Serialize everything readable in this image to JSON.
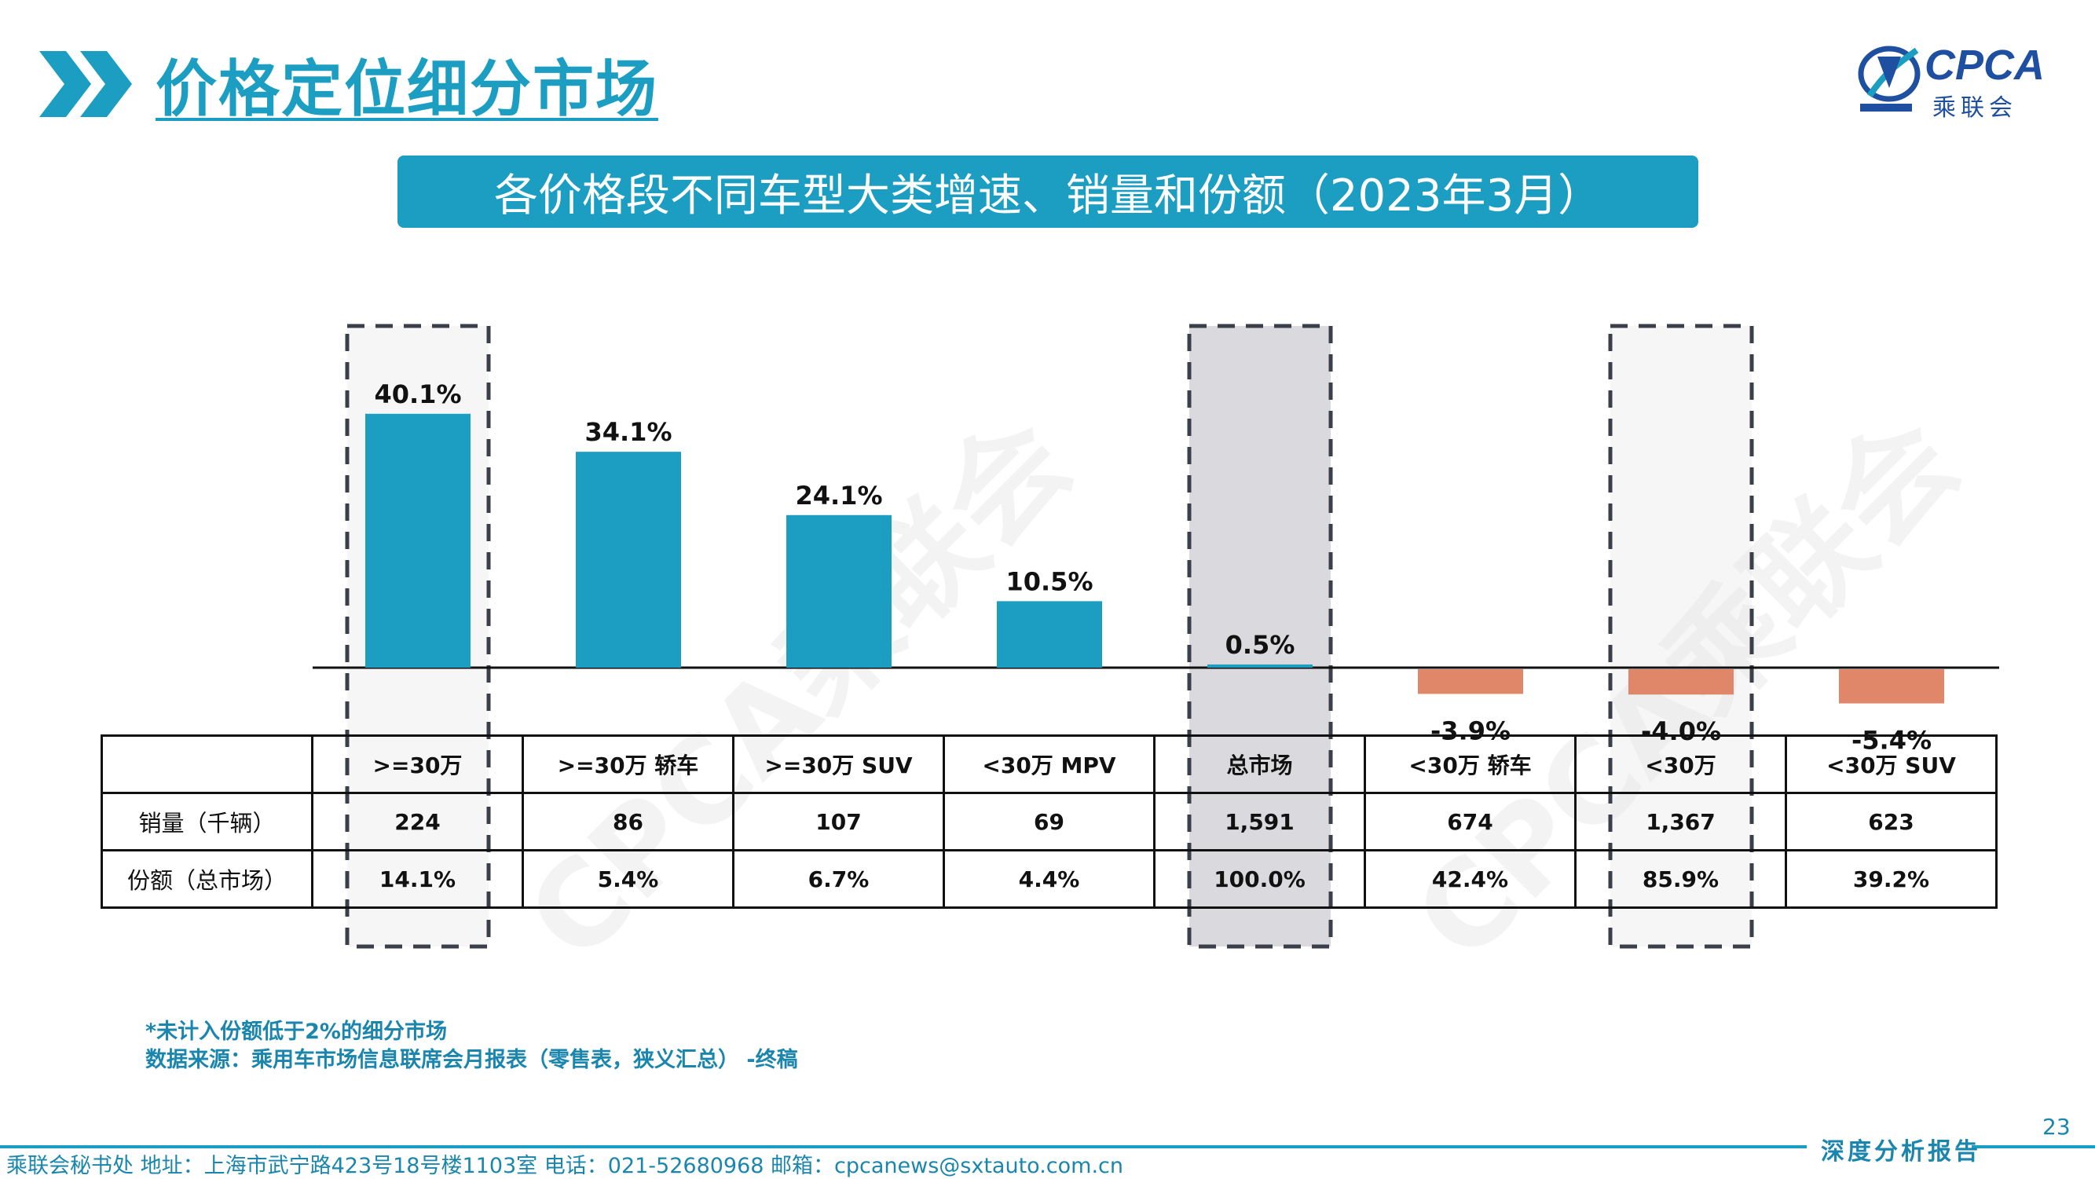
{
  "page": {
    "title": "价格定位细分市场",
    "logo_text": "CPCA",
    "logo_sub": "乘联会",
    "banner": "各价格段不同车型大类增速、销量和份额（2023年3月）",
    "watermark": "CPCA乘联会",
    "page_number": "23",
    "notes": [
      "*未计入份额低于2%的细分市场",
      "数据来源：乘用车市场信息联席会月报表（零售表，狭义汇总） -终稿"
    ],
    "footer": "乘联会秘书处   地址：上海市武宁路423号18号楼1103室   电话：021-52680968   邮箱：cpcanews@sxtauto.com.cn",
    "report_label": "深度分析报告"
  },
  "colors": {
    "positive": "#1b9ec2",
    "negative": "#e0876a",
    "highlight": "#d9d9de",
    "accent": "#1b9ec2"
  },
  "chart_data": {
    "type": "bar",
    "title": "各价格段不同车型大类增速、销量和份额（2023年3月）",
    "categories": [
      ">=30万",
      ">=30万 轿车",
      ">=30万 SUV",
      "<30万 MPV",
      "总市场",
      "<30万 轿车",
      "<30万",
      "<30万 SUV"
    ],
    "values": [
      40.1,
      34.1,
      24.1,
      10.5,
      0.5,
      -3.9,
      -4.0,
      -5.4
    ],
    "value_labels": [
      "40.1%",
      "34.1%",
      "24.1%",
      "10.5%",
      "0.5%",
      "-3.9%",
      "-4.0%",
      "-5.4%"
    ],
    "unit": "%",
    "highlighted": [
      ">=30万",
      "总市场",
      "<30万"
    ],
    "table": {
      "row_labels": [
        "销量（千辆）",
        "份额（总市场）"
      ],
      "sales": [
        "224",
        "86",
        "107",
        "69",
        "1,591",
        "674",
        "1,367",
        "623"
      ],
      "share": [
        "14.1%",
        "5.4%",
        "6.7%",
        "4.4%",
        "100.0%",
        "42.4%",
        "85.9%",
        "39.2%"
      ]
    }
  }
}
